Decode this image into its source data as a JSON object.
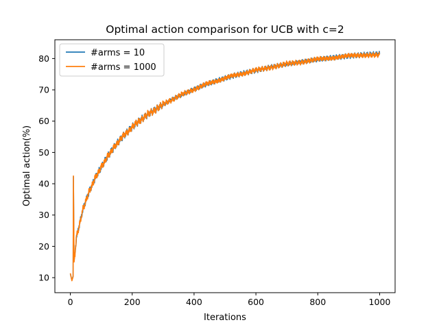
{
  "chart_data": {
    "type": "line",
    "title": "Optimal action comparison for UCB with c=2",
    "xlabel": "Iterations",
    "ylabel": "Optimal action(%)",
    "xlim": [
      -50,
      1050
    ],
    "ylim": [
      5.2,
      86
    ],
    "xticks": [
      0,
      200,
      400,
      600,
      800,
      1000
    ],
    "yticks": [
      10,
      20,
      30,
      40,
      50,
      60,
      70,
      80
    ],
    "grid": false,
    "legend_position": "top-left",
    "series": [
      {
        "name": "#arms = 10",
        "color": "#1f77b4",
        "x": [
          0,
          5,
          9,
          10,
          11,
          12,
          15,
          20,
          30,
          40,
          50,
          60,
          70,
          80,
          90,
          100,
          110,
          120,
          130,
          140,
          150,
          170,
          190,
          210,
          230,
          250,
          270,
          300,
          330,
          360,
          400,
          440,
          480,
          520,
          560,
          600,
          650,
          700,
          750,
          800,
          850,
          900,
          950,
          1000
        ],
        "y": [
          11.2,
          9.2,
          10.5,
          42.3,
          29,
          15.2,
          18,
          23,
          27.2,
          31.5,
          34.6,
          37.2,
          39.5,
          41.8,
          43.6,
          45.3,
          47,
          48.6,
          50.1,
          51.4,
          52.8,
          55.1,
          57.1,
          59,
          60.6,
          62.1,
          63.4,
          65.3,
          67,
          68.4,
          70.2,
          71.8,
          73.1,
          74.3,
          75.3,
          76.2,
          77.3,
          78.2,
          79,
          79.7,
          80.3,
          80.8,
          81.2,
          81.5
        ]
      },
      {
        "name": "#arms = 1000",
        "color": "#ff7f0e",
        "x": [
          0,
          5,
          9,
          10,
          11,
          12,
          15,
          20,
          30,
          40,
          50,
          60,
          70,
          80,
          90,
          100,
          110,
          120,
          130,
          140,
          150,
          170,
          190,
          210,
          230,
          250,
          270,
          300,
          330,
          360,
          400,
          440,
          480,
          520,
          560,
          600,
          650,
          700,
          750,
          800,
          850,
          900,
          950,
          1000
        ],
        "y": [
          11.4,
          9,
          10.3,
          42.5,
          28.8,
          15,
          17.8,
          23.2,
          27,
          31.7,
          34.4,
          37.4,
          39.3,
          42,
          43.4,
          45.5,
          46.8,
          48.8,
          49.9,
          51.6,
          52.6,
          55.3,
          56.9,
          59.2,
          60.4,
          62.3,
          63.2,
          65.5,
          66.8,
          68.6,
          70,
          72,
          72.9,
          74.5,
          75.1,
          76.4,
          77.1,
          78.4,
          78.8,
          79.9,
          80.1,
          81,
          81,
          81.2
        ]
      }
    ]
  }
}
